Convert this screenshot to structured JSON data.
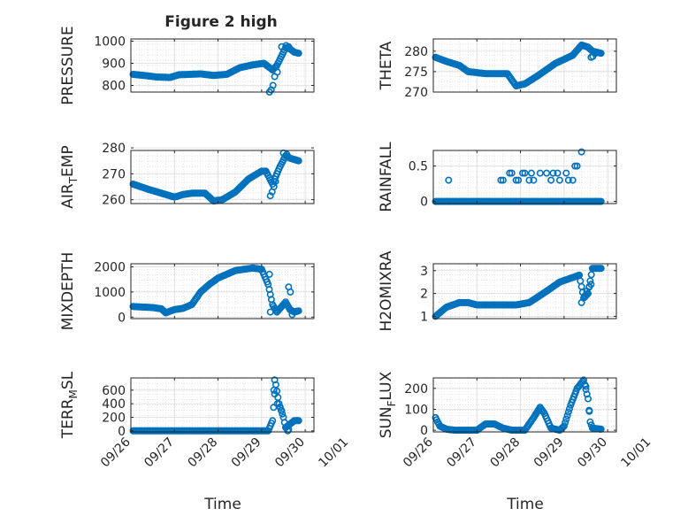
{
  "figure": {
    "title": "Figure 2 high",
    "xlabel": "Time"
  },
  "chart_data": [
    {
      "type": "scatter",
      "ylabel": "PRESSURE",
      "ylim": [
        770,
        1010
      ],
      "yticks": [
        {
          "v": 800,
          "label": "800"
        },
        {
          "v": 900,
          "label": "900"
        },
        {
          "v": 1000,
          "label": "1000"
        }
      ],
      "xlim": [
        0,
        4.2
      ],
      "xticks": [],
      "grid": true,
      "marker_color": "#0072BD",
      "anchors": [
        [
          0.05,
          850
        ],
        [
          0.3,
          845
        ],
        [
          0.6,
          838
        ],
        [
          0.9,
          836
        ],
        [
          1.1,
          848
        ],
        [
          1.6,
          852
        ],
        [
          1.9,
          845
        ],
        [
          2.2,
          850
        ],
        [
          2.5,
          880
        ],
        [
          2.8,
          893
        ],
        [
          3.05,
          900
        ],
        [
          3.15,
          885
        ],
        [
          3.25,
          870
        ],
        [
          3.35,
          890
        ],
        [
          3.45,
          930
        ],
        [
          3.55,
          970
        ],
        [
          3.65,
          965
        ],
        [
          3.75,
          950
        ],
        [
          3.85,
          945
        ]
      ],
      "step": 0.025,
      "extra_points": [
        [
          3.18,
          770
        ],
        [
          3.22,
          780
        ],
        [
          3.26,
          800
        ],
        [
          3.3,
          840
        ],
        [
          3.36,
          860
        ],
        [
          3.46,
          975
        ],
        [
          3.56,
          980
        ],
        [
          3.62,
          975
        ]
      ]
    },
    {
      "type": "scatter",
      "ylabel": "THETA",
      "ylim": [
        270,
        283
      ],
      "yticks": [
        {
          "v": 270,
          "label": "270"
        },
        {
          "v": 275,
          "label": "275"
        },
        {
          "v": 280,
          "label": "280"
        }
      ],
      "xlim": [
        0,
        4.2
      ],
      "xticks": [],
      "grid": true,
      "marker_color": "#0072BD",
      "anchors": [
        [
          0.05,
          278.5
        ],
        [
          0.3,
          277.5
        ],
        [
          0.6,
          276.5
        ],
        [
          0.8,
          275
        ],
        [
          1.2,
          274.5
        ],
        [
          1.5,
          274.5
        ],
        [
          1.7,
          274.5
        ],
        [
          1.9,
          271.5
        ],
        [
          2.1,
          272
        ],
        [
          2.4,
          274
        ],
        [
          2.8,
          277
        ],
        [
          3.2,
          279
        ],
        [
          3.4,
          281.5
        ],
        [
          3.55,
          281
        ],
        [
          3.65,
          280
        ],
        [
          3.85,
          279.5
        ]
      ],
      "step": 0.025,
      "extra_points": [
        [
          3.62,
          278.5
        ],
        [
          3.66,
          278.7
        ],
        [
          3.72,
          279.5
        ]
      ]
    },
    {
      "type": "scatter",
      "ylabel": "AIR_TEMP",
      "ylim": [
        258.5,
        279
      ],
      "yticks": [
        {
          "v": 260,
          "label": "260"
        },
        {
          "v": 270,
          "label": "270"
        },
        {
          "v": 280,
          "label": "280"
        }
      ],
      "xlim": [
        0,
        4.2
      ],
      "xticks": [],
      "grid": true,
      "marker_color": "#0072BD",
      "anchors": [
        [
          0.05,
          266
        ],
        [
          0.4,
          264
        ],
        [
          0.8,
          262
        ],
        [
          1.0,
          261
        ],
        [
          1.2,
          262
        ],
        [
          1.4,
          262.5
        ],
        [
          1.7,
          262.5
        ],
        [
          1.9,
          259.5
        ],
        [
          2.1,
          260
        ],
        [
          2.4,
          263
        ],
        [
          2.7,
          268
        ],
        [
          3.0,
          271
        ],
        [
          3.1,
          271
        ],
        [
          3.25,
          266
        ],
        [
          3.4,
          272
        ],
        [
          3.55,
          277
        ],
        [
          3.65,
          276
        ],
        [
          3.85,
          275
        ]
      ],
      "step": 0.025,
      "extra_points": [
        [
          3.2,
          261.5
        ],
        [
          3.24,
          263
        ],
        [
          3.28,
          265
        ],
        [
          3.32,
          267
        ],
        [
          3.5,
          278
        ],
        [
          3.58,
          277.5
        ]
      ]
    },
    {
      "type": "scatter",
      "ylabel": "RAINFALL",
      "ylim": [
        -0.03,
        0.72
      ],
      "yticks": [
        {
          "v": 0,
          "label": "0"
        },
        {
          "v": 0.5,
          "label": "0.5"
        }
      ],
      "xlim": [
        0,
        4.2
      ],
      "xticks": [],
      "grid": true,
      "marker_color": "#0072BD",
      "anchors": [
        [
          0.05,
          0
        ],
        [
          3.85,
          0
        ]
      ],
      "step": 0.025,
      "extra_points": [
        [
          0.35,
          0.3
        ],
        [
          1.55,
          0.3
        ],
        [
          1.6,
          0.3
        ],
        [
          1.75,
          0.4
        ],
        [
          1.8,
          0.4
        ],
        [
          1.9,
          0.3
        ],
        [
          1.95,
          0.3
        ],
        [
          2.05,
          0.4
        ],
        [
          2.1,
          0.4
        ],
        [
          2.2,
          0.3
        ],
        [
          2.25,
          0.4
        ],
        [
          2.3,
          0.3
        ],
        [
          2.45,
          0.4
        ],
        [
          2.6,
          0.4
        ],
        [
          2.7,
          0.3
        ],
        [
          2.75,
          0.4
        ],
        [
          2.85,
          0.4
        ],
        [
          2.9,
          0.3
        ],
        [
          3.05,
          0.4
        ],
        [
          3.1,
          0.3
        ],
        [
          3.2,
          0.3
        ],
        [
          3.25,
          0.5
        ],
        [
          3.3,
          0.5
        ],
        [
          3.4,
          0.7
        ]
      ]
    },
    {
      "type": "scatter",
      "ylabel": "MIXDEPTH",
      "ylim": [
        -60,
        2120
      ],
      "yticks": [
        {
          "v": 0,
          "label": "0"
        },
        {
          "v": 1000,
          "label": "1000"
        },
        {
          "v": 2000,
          "label": "2000"
        }
      ],
      "xlim": [
        0,
        4.2
      ],
      "xticks": [],
      "grid": true,
      "marker_color": "#0072BD",
      "anchors": [
        [
          0.05,
          420
        ],
        [
          0.5,
          380
        ],
        [
          0.7,
          330
        ],
        [
          0.8,
          170
        ],
        [
          1.0,
          300
        ],
        [
          1.2,
          350
        ],
        [
          1.4,
          500
        ],
        [
          1.6,
          1000
        ],
        [
          1.8,
          1300
        ],
        [
          2.0,
          1550
        ],
        [
          2.2,
          1700
        ],
        [
          2.4,
          1850
        ],
        [
          2.6,
          1900
        ],
        [
          2.8,
          1950
        ],
        [
          3.0,
          1900
        ],
        [
          3.15,
          1300
        ],
        [
          3.25,
          500
        ],
        [
          3.35,
          200
        ],
        [
          3.45,
          400
        ],
        [
          3.55,
          600
        ],
        [
          3.65,
          300
        ],
        [
          3.75,
          200
        ],
        [
          3.85,
          250
        ]
      ],
      "step": 0.025,
      "extra_points": [
        [
          3.18,
          1700
        ],
        [
          3.2,
          200
        ],
        [
          3.62,
          1200
        ],
        [
          3.66,
          1000
        ],
        [
          3.7,
          100
        ]
      ]
    },
    {
      "type": "scatter",
      "ylabel": "H2OMIXRA",
      "ylim": [
        0.9,
        3.3
      ],
      "yticks": [
        {
          "v": 1,
          "label": "1"
        },
        {
          "v": 2,
          "label": "2"
        },
        {
          "v": 3,
          "label": "3"
        }
      ],
      "xlim": [
        0,
        4.2
      ],
      "xticks": [],
      "grid": true,
      "marker_color": "#0072BD",
      "anchors": [
        [
          0.05,
          1.0
        ],
        [
          0.3,
          1.4
        ],
        [
          0.6,
          1.6
        ],
        [
          0.8,
          1.6
        ],
        [
          1.0,
          1.5
        ],
        [
          1.9,
          1.5
        ],
        [
          2.2,
          1.6
        ],
        [
          2.6,
          2.1
        ],
        [
          2.9,
          2.5
        ],
        [
          3.2,
          2.7
        ],
        [
          3.35,
          2.8
        ],
        [
          3.45,
          1.8
        ],
        [
          3.55,
          2.0
        ],
        [
          3.65,
          3.1
        ],
        [
          3.85,
          3.1
        ]
      ],
      "step": 0.025,
      "extra_points": [
        [
          3.4,
          1.6
        ],
        [
          3.48,
          1.9
        ],
        [
          3.52,
          2.1
        ],
        [
          3.58,
          2.3
        ],
        [
          3.62,
          2.4
        ]
      ]
    },
    {
      "type": "scatter",
      "ylabel": "TERR_MSL",
      "ylim": [
        -15,
        780
      ],
      "yticks": [
        {
          "v": 0,
          "label": "0"
        },
        {
          "v": 200,
          "label": "200"
        },
        {
          "v": 400,
          "label": "400"
        },
        {
          "v": 600,
          "label": "600"
        }
      ],
      "xlim": [
        0,
        4.2
      ],
      "grid": true,
      "marker_color": "#0072BD",
      "xticks": [
        {
          "v": 0,
          "label": "09/26"
        },
        {
          "v": 1,
          "label": "09/27"
        },
        {
          "v": 2,
          "label": "09/28"
        },
        {
          "v": 3,
          "label": "09/29"
        },
        {
          "v": 4,
          "label": "09/30"
        },
        {
          "v": 5,
          "label": "10/01"
        }
      ],
      "anchors": [
        [
          0.05,
          0
        ],
        [
          3.15,
          0
        ],
        [
          3.25,
          150
        ],
        [
          3.32,
          700
        ],
        [
          3.4,
          400
        ],
        [
          3.5,
          200
        ],
        [
          3.55,
          50
        ],
        [
          3.65,
          100
        ],
        [
          3.75,
          150
        ],
        [
          3.85,
          150
        ]
      ],
      "step": 0.025,
      "extra_points": [
        [
          3.28,
          600
        ],
        [
          3.3,
          750
        ],
        [
          3.36,
          400
        ],
        [
          3.42,
          350
        ],
        [
          3.46,
          300
        ],
        [
          3.6,
          0
        ],
        [
          3.62,
          20
        ]
      ]
    },
    {
      "type": "scatter",
      "ylabel": "SUN_FLUX",
      "ylim": [
        -8,
        250
      ],
      "yticks": [
        {
          "v": 0,
          "label": "0"
        },
        {
          "v": 100,
          "label": "100"
        },
        {
          "v": 200,
          "label": "200"
        }
      ],
      "xlim": [
        0,
        4.2
      ],
      "grid": true,
      "marker_color": "#0072BD",
      "xticks": [
        {
          "v": 0,
          "label": "09/26"
        },
        {
          "v": 1,
          "label": "09/27"
        },
        {
          "v": 2,
          "label": "09/28"
        },
        {
          "v": 3,
          "label": "09/29"
        },
        {
          "v": 4,
          "label": "09/30"
        },
        {
          "v": 5,
          "label": "10/01"
        }
      ],
      "anchors": [
        [
          0.05,
          60
        ],
        [
          0.15,
          20
        ],
        [
          0.3,
          5
        ],
        [
          0.5,
          0
        ],
        [
          1.0,
          0
        ],
        [
          1.2,
          30
        ],
        [
          1.4,
          30
        ],
        [
          1.6,
          10
        ],
        [
          1.8,
          0
        ],
        [
          2.1,
          0
        ],
        [
          2.3,
          60
        ],
        [
          2.45,
          110
        ],
        [
          2.55,
          80
        ],
        [
          2.7,
          10
        ],
        [
          2.9,
          0
        ],
        [
          3.0,
          20
        ],
        [
          3.15,
          120
        ],
        [
          3.3,
          200
        ],
        [
          3.45,
          240
        ],
        [
          3.55,
          150
        ],
        [
          3.6,
          40
        ],
        [
          3.65,
          10
        ],
        [
          3.85,
          5
        ]
      ],
      "step": 0.025,
      "extra_points": [
        [
          3.38,
          220
        ],
        [
          3.5,
          210
        ],
        [
          3.58,
          90
        ]
      ]
    }
  ]
}
